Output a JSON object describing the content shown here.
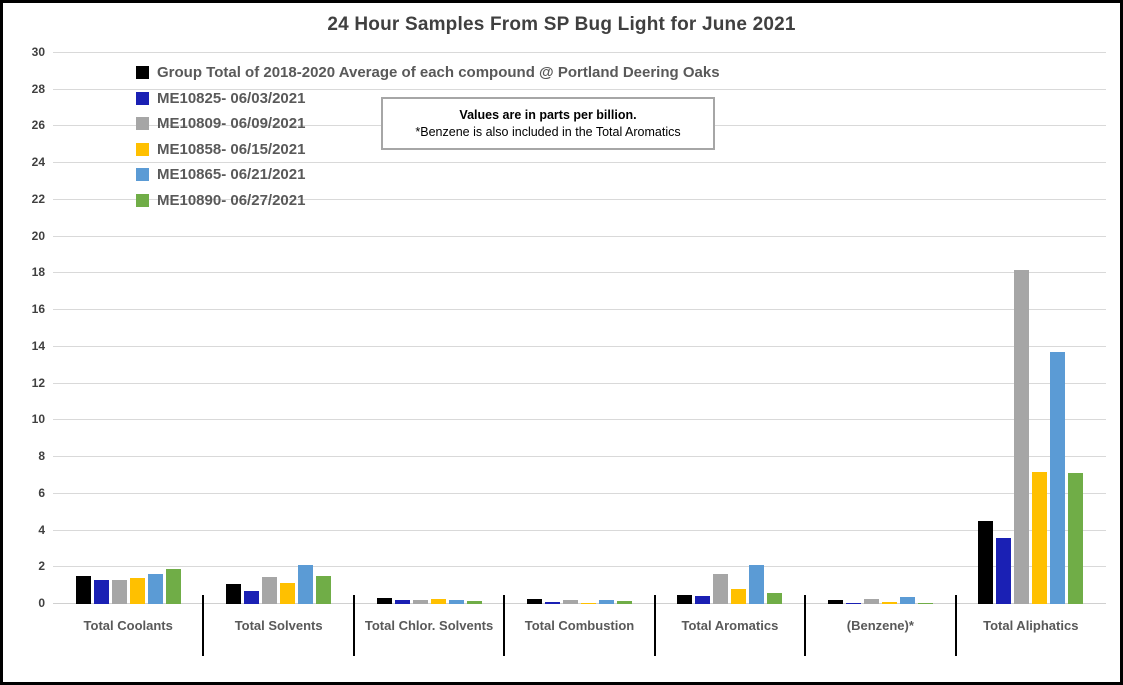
{
  "chart_data": {
    "type": "bar",
    "title": "24 Hour Samples From SP Bug Light for June 2021",
    "categories": [
      "Total Coolants",
      "Total Solvents",
      "Total Chlor. Solvents",
      "Total Combustion",
      "Total Aromatics",
      "(Benzene)*",
      "Total Aliphatics"
    ],
    "series": [
      {
        "name": "Group Total of 2018-2020 Average of each compound @ Portland Deering Oaks",
        "color": "#000000",
        "values": [
          1.5,
          1.1,
          0.3,
          0.25,
          0.5,
          0.2,
          4.5
        ]
      },
      {
        "name": "ME10825- 06/03/2021",
        "color": "#1a20b4",
        "values": [
          1.3,
          0.7,
          0.2,
          0.1,
          0.45,
          0.05,
          3.6
        ]
      },
      {
        "name": "ME10809- 06/09/2021",
        "color": "#a6a6a6",
        "values": [
          1.3,
          1.45,
          0.2,
          0.2,
          1.65,
          0.25,
          18.2
        ]
      },
      {
        "name": "ME10858- 06/15/2021",
        "color": "#ffc000",
        "values": [
          1.4,
          1.15,
          0.25,
          0.08,
          0.8,
          0.12,
          7.2
        ]
      },
      {
        "name": "ME10865- 06/21/2021",
        "color": "#5b9bd5",
        "values": [
          1.65,
          2.1,
          0.2,
          0.2,
          2.15,
          0.4,
          13.7
        ]
      },
      {
        "name": "ME10890- 06/27/2021",
        "color": "#70ad47",
        "values": [
          1.9,
          1.55,
          0.15,
          0.15,
          0.6,
          0.05,
          7.15
        ]
      }
    ],
    "ylabel": "",
    "xlabel": "",
    "ylim": [
      0,
      30
    ],
    "ytick_step": 2,
    "grid": true,
    "legend_position": "top-left-inside",
    "annotation": {
      "line1": "Values are in parts per billion.",
      "line2": "*Benzene is also included in the Total Aromatics"
    },
    "colors": {
      "title_text": "#404040",
      "axis_text": "#404040",
      "category_text": "#595959",
      "legend_text": "#595959",
      "gridline": "#d9d9d9",
      "frame_border": "#000000",
      "annotation_border": "#a6a6a6"
    }
  }
}
